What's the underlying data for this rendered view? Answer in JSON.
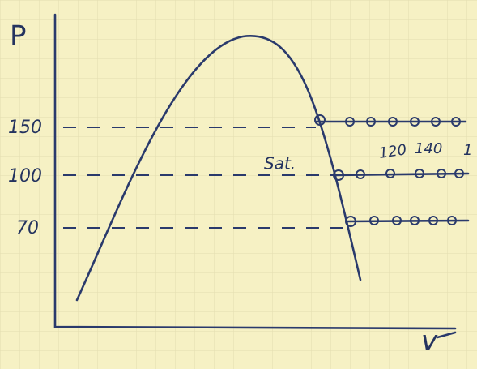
{
  "axes": {
    "y_label": "P",
    "x_label": "v"
  },
  "pressures": [
    "150",
    "100",
    "70"
  ],
  "annotations": {
    "saturation": "Sat.",
    "temperatures": [
      "120",
      "140",
      "1"
    ]
  }
}
